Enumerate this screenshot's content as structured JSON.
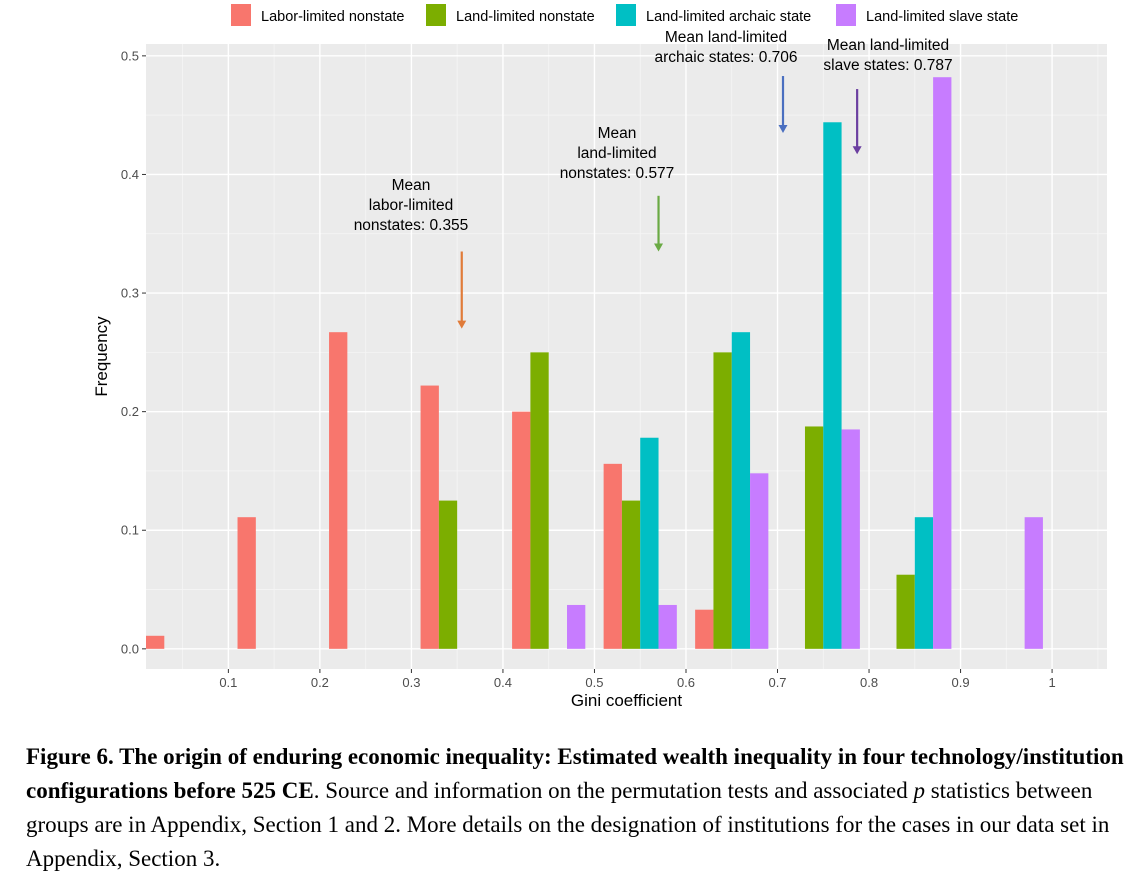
{
  "chart_data": {
    "type": "bar",
    "xlabel": "Gini coefficient",
    "ylabel": "Frequency",
    "xlim": [
      0.01,
      1.06
    ],
    "ylim": [
      -0.017,
      0.51
    ],
    "xticks": [
      {
        "value": 0.1,
        "label": "0.1"
      },
      {
        "value": 0.2,
        "label": "0.2"
      },
      {
        "value": 0.3,
        "label": "0.3"
      },
      {
        "value": 0.4,
        "label": "0.4"
      },
      {
        "value": 0.5,
        "label": "0.5"
      },
      {
        "value": 0.6,
        "label": "0.6"
      },
      {
        "value": 0.7,
        "label": "0.7"
      },
      {
        "value": 0.8,
        "label": "0.8"
      },
      {
        "value": 0.9,
        "label": "0.9"
      },
      {
        "value": 1,
        "label": "1"
      }
    ],
    "yticks": [
      {
        "value": 0.0,
        "label": "0.0"
      },
      {
        "value": 0.1,
        "label": "0.1"
      },
      {
        "value": 0.2,
        "label": "0.2"
      },
      {
        "value": 0.3,
        "label": "0.3"
      },
      {
        "value": 0.4,
        "label": "0.4"
      },
      {
        "value": 0.5,
        "label": "0.5"
      }
    ],
    "bin_width": 0.02,
    "series": [
      {
        "name": "Labor-limited nonstate",
        "color": "#F8766D",
        "points": [
          [
            0.02,
            0.011
          ],
          [
            0.12,
            0.111
          ],
          [
            0.22,
            0.267
          ],
          [
            0.32,
            0.222
          ],
          [
            0.42,
            0.2
          ],
          [
            0.52,
            0.156
          ],
          [
            0.62,
            0.033
          ]
        ]
      },
      {
        "name": "Land-limited nonstate",
        "color": "#7CAE00",
        "points": [
          [
            0.34,
            0.125
          ],
          [
            0.44,
            0.25
          ],
          [
            0.54,
            0.125
          ],
          [
            0.64,
            0.25
          ],
          [
            0.74,
            0.1875
          ],
          [
            0.84,
            0.0625
          ]
        ]
      },
      {
        "name": "Land-limited archaic state",
        "color": "#00BFC4",
        "points": [
          [
            0.56,
            0.178
          ],
          [
            0.66,
            0.267
          ],
          [
            0.76,
            0.444
          ],
          [
            0.86,
            0.111
          ]
        ]
      },
      {
        "name": "Land-limited slave state",
        "color": "#C77CFF",
        "points": [
          [
            0.48,
            0.037
          ],
          [
            0.58,
            0.037
          ],
          [
            0.68,
            0.148
          ],
          [
            0.78,
            0.185
          ],
          [
            0.88,
            0.482
          ],
          [
            0.98,
            0.111
          ]
        ]
      }
    ],
    "annotations": [
      {
        "lines": [
          "Mean",
          "labor-limited",
          "nonstates: 0.355"
        ],
        "x": 0.355,
        "arrow_from": 0.335,
        "arrow_to": 0.27,
        "color": "#E07B39"
      },
      {
        "lines": [
          "Mean",
          "land-limited",
          "nonstates: 0.577"
        ],
        "x": 0.57,
        "arrow_from": 0.382,
        "arrow_to": 0.335,
        "color": "#6AAA44"
      },
      {
        "lines": [
          "Mean land-limited",
          "archaic states: 0.706"
        ],
        "x": 0.706,
        "arrow_from": 0.483,
        "arrow_to": 0.435,
        "color": "#4A6FC0"
      },
      {
        "lines": [
          "Mean land-limited",
          "slave states: 0.787"
        ],
        "x": 0.787,
        "arrow_from": 0.472,
        "arrow_to": 0.417,
        "color": "#6B3FA0"
      }
    ]
  },
  "caption": {
    "bold": "Figure 6. The origin of enduring economic inequality: Estimated wealth inequality in four technology/institution configurations before 525 CE",
    "part1": ". Source and information on the permutation tests and associated ",
    "italic": "p",
    "part2": " statistics between groups are in Appendix, Section 1 and 2. More details on the designation of institutions for the cases in our data set in Appendix, Section 3."
  }
}
